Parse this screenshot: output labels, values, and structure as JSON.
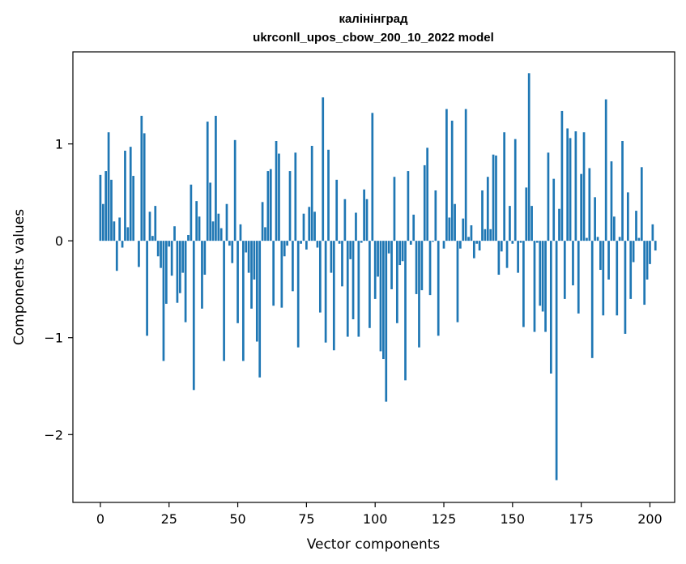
{
  "chart_data": {
    "type": "bar",
    "title": "калінінград",
    "subtitle": "ukrconll_upos_cbow_200_10_2022 model",
    "xlabel": "Vector components",
    "ylabel": "Components values",
    "xlim": [
      -10,
      209
    ],
    "ylim": [
      -2.7,
      1.95
    ],
    "xticks": [
      0,
      25,
      50,
      75,
      100,
      125,
      150,
      175,
      200
    ],
    "yticks": [
      -2,
      -1,
      0,
      1
    ],
    "grid": false,
    "bar_color": "#1f77b4",
    "values": [
      0.68,
      0.38,
      0.72,
      1.12,
      0.63,
      0.2,
      -0.31,
      0.24,
      -0.07,
      0.93,
      0.14,
      0.97,
      0.67,
      0.0,
      -0.27,
      1.29,
      1.11,
      -0.98,
      0.3,
      0.05,
      0.36,
      -0.16,
      -0.28,
      -1.24,
      -0.65,
      -0.06,
      -0.36,
      0.15,
      -0.64,
      -0.54,
      -0.33,
      -0.84,
      0.06,
      0.58,
      -1.54,
      0.41,
      0.25,
      -0.7,
      -0.35,
      1.23,
      0.6,
      0.2,
      1.29,
      0.28,
      0.13,
      -1.24,
      0.38,
      -0.05,
      -0.23,
      1.04,
      -0.85,
      0.17,
      -1.24,
      -0.12,
      -0.33,
      -0.7,
      -0.4,
      -1.04,
      -1.41,
      0.4,
      0.14,
      0.72,
      0.74,
      -0.67,
      1.03,
      0.9,
      -0.69,
      -0.16,
      -0.05,
      0.72,
      -0.52,
      0.91,
      -1.1,
      -0.03,
      0.28,
      -0.09,
      0.35,
      0.98,
      0.3,
      -0.07,
      -0.74,
      1.48,
      -1.05,
      0.94,
      -0.33,
      -1.13,
      0.63,
      -0.03,
      -0.47,
      0.43,
      -0.99,
      -0.19,
      -0.81,
      0.29,
      -0.99,
      -0.02,
      0.53,
      0.43,
      -0.9,
      1.32,
      -0.6,
      -0.37,
      -1.14,
      -1.22,
      -1.66,
      -0.13,
      -0.5,
      0.66,
      -0.85,
      -0.25,
      -0.21,
      -1.44,
      0.72,
      -0.04,
      0.27,
      -0.55,
      -1.1,
      -0.51,
      0.78,
      0.96,
      -0.56,
      -0.01,
      0.52,
      -0.98,
      0.0,
      -0.08,
      1.36,
      0.24,
      1.24,
      0.38,
      -0.84,
      -0.08,
      0.23,
      1.36,
      0.04,
      0.16,
      -0.18,
      -0.03,
      -0.1,
      0.52,
      0.12,
      0.66,
      0.12,
      0.89,
      0.88,
      -0.35,
      -0.11,
      1.12,
      -0.28,
      0.36,
      -0.03,
      1.05,
      -0.33,
      -0.02,
      -0.89,
      0.55,
      1.73,
      0.36,
      -0.94,
      -0.02,
      -0.67,
      -0.73,
      -0.94,
      0.91,
      -1.37,
      0.64,
      -2.47,
      0.33,
      1.34,
      -0.6,
      1.16,
      1.06,
      -0.46,
      1.13,
      -0.75,
      0.69,
      1.12,
      0.03,
      0.75,
      -1.21,
      0.45,
      0.04,
      -0.3,
      -0.77,
      1.46,
      -0.4,
      0.82,
      0.25,
      -0.77,
      0.04,
      1.03,
      -0.96,
      0.5,
      -0.6,
      -0.22,
      0.31,
      0.03,
      0.76,
      -0.66,
      -0.4,
      -0.24,
      0.17,
      -0.1
    ]
  }
}
